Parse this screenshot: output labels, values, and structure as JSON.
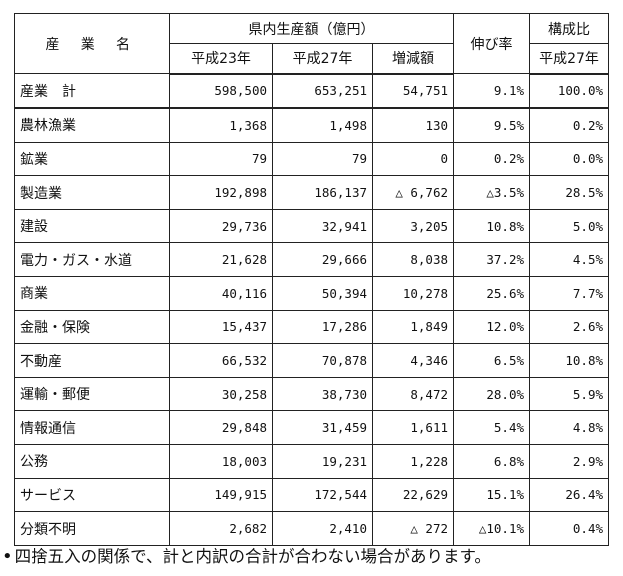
{
  "header": {
    "industry": "産 業 名",
    "gdp": "県内生産額（億円）",
    "growth": "伸び率",
    "composition": "構成比",
    "h23": "平成23年",
    "h27": "平成27年",
    "diff": "増減額",
    "comp_h27": "平成27年"
  },
  "rows": [
    {
      "name": "産業　計",
      "h23": "598,500",
      "h27": "653,251",
      "diff": "54,751",
      "rate": "9.1%",
      "comp": "100.0%"
    },
    {
      "name": "農林漁業",
      "h23": "1,368",
      "h27": "1,498",
      "diff": "130",
      "rate": "9.5%",
      "comp": "0.2%"
    },
    {
      "name": "鉱業",
      "h23": "79",
      "h27": "79",
      "diff": "0",
      "rate": "0.2%",
      "comp": "0.0%"
    },
    {
      "name": "製造業",
      "h23": "192,898",
      "h27": "186,137",
      "diff": "△ 6,762",
      "rate": "△3.5%",
      "comp": "28.5%"
    },
    {
      "name": "建設",
      "h23": "29,736",
      "h27": "32,941",
      "diff": "3,205",
      "rate": "10.8%",
      "comp": "5.0%"
    },
    {
      "name": "電力・ガス・水道",
      "h23": "21,628",
      "h27": "29,666",
      "diff": "8,038",
      "rate": "37.2%",
      "comp": "4.5%"
    },
    {
      "name": "商業",
      "h23": "40,116",
      "h27": "50,394",
      "diff": "10,278",
      "rate": "25.6%",
      "comp": "7.7%"
    },
    {
      "name": "金融・保険",
      "h23": "15,437",
      "h27": "17,286",
      "diff": "1,849",
      "rate": "12.0%",
      "comp": "2.6%"
    },
    {
      "name": "不動産",
      "h23": "66,532",
      "h27": "70,878",
      "diff": "4,346",
      "rate": "6.5%",
      "comp": "10.8%"
    },
    {
      "name": "運輸・郵便",
      "h23": "30,258",
      "h27": "38,730",
      "diff": "8,472",
      "rate": "28.0%",
      "comp": "5.9%"
    },
    {
      "name": "情報通信",
      "h23": "29,848",
      "h27": "31,459",
      "diff": "1,611",
      "rate": "5.4%",
      "comp": "4.8%"
    },
    {
      "name": "公務",
      "h23": "18,003",
      "h27": "19,231",
      "diff": "1,228",
      "rate": "6.8%",
      "comp": "2.9%"
    },
    {
      "name": "サービス",
      "h23": "149,915",
      "h27": "172,544",
      "diff": "22,629",
      "rate": "15.1%",
      "comp": "26.4%"
    },
    {
      "name": "分類不明",
      "h23": "2,682",
      "h27": "2,410",
      "diff": "△ 272",
      "rate": "△10.1%",
      "comp": "0.4%"
    }
  ],
  "note": {
    "bullet": "•",
    "text": "四捨五入の関係で、計と内訳の合計が合わない場合があります。"
  }
}
